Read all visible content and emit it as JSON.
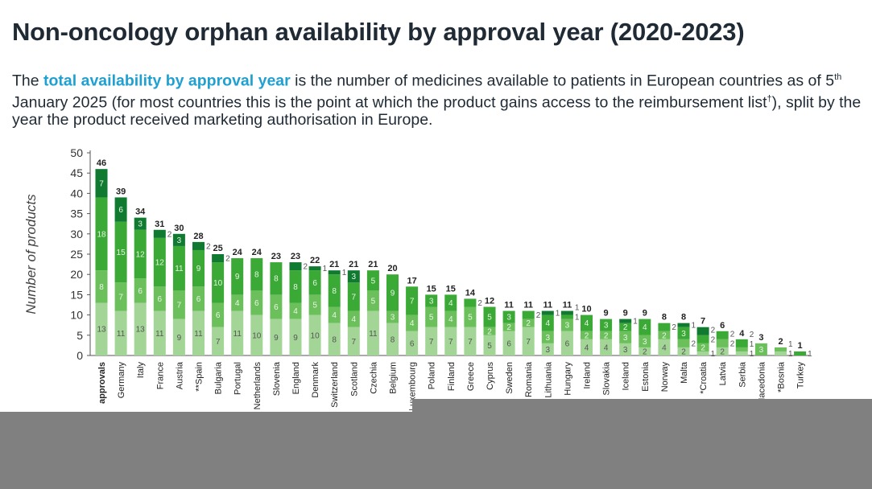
{
  "title": "Non-oncology orphan availability by approval year (2020-2023)",
  "subtitle": {
    "pre": "The ",
    "highlight": "total availability by approval year",
    "mid": " is the number of medicines available to patients in European countries as of 5",
    "sup": "th",
    "post": " January 2025 (for most countries this is the point at which the product gains access to the reimbursement list",
    "dagger": "†",
    "end": "), split by the year the product received marketing authorisation in Europe."
  },
  "colors": {
    "highlight": "#1fa0d0",
    "segments": [
      "#a3d597",
      "#6cc05c",
      "#3aa935",
      "#0f7a30"
    ]
  },
  "chart_data": {
    "type": "bar",
    "stacked": true,
    "ylabel": "Number of products",
    "ylim": [
      0,
      50
    ],
    "yticks": [
      0,
      5,
      10,
      15,
      20,
      25,
      30,
      35,
      40,
      45,
      50
    ],
    "grid": false,
    "categories": [
      "approvals",
      "Germany",
      "Italy",
      "France",
      "Austria",
      "**Spain",
      "Bulgaria",
      "Portugal",
      "Netherlands",
      "Slovenia",
      "England",
      "Denmark",
      "Switzerland",
      "Scotland",
      "Czechia",
      "Belgium",
      "Luxembourg",
      "Poland",
      "Finland",
      "Greece",
      "Cyprus",
      "Sweden",
      "Romania",
      "Lithuania",
      "Hungary",
      "Ireland",
      "Slovakia",
      "Iceland",
      "Estonia",
      "Norway",
      "Malta",
      "*Croatia",
      "Latvia",
      "Serbia",
      "Macedonia",
      "*Bosnia",
      "Turkey"
    ],
    "totals": [
      46,
      39,
      34,
      31,
      30,
      28,
      25,
      24,
      24,
      23,
      23,
      22,
      21,
      21,
      21,
      20,
      17,
      15,
      15,
      14,
      12,
      11,
      11,
      11,
      11,
      10,
      9,
      9,
      9,
      8,
      8,
      7,
      6,
      4,
      3,
      2,
      1
    ],
    "series": [
      {
        "values": [
          13,
          11,
          13,
          11,
          9,
          11,
          7,
          11,
          10,
          9,
          9,
          10,
          8,
          7,
          11,
          8,
          6,
          7,
          7,
          7,
          5,
          6,
          7,
          3,
          6,
          4,
          4,
          3,
          2,
          4,
          2,
          1,
          2,
          1,
          0,
          1,
          0
        ]
      },
      {
        "values": [
          8,
          7,
          6,
          6,
          7,
          6,
          6,
          4,
          6,
          6,
          4,
          5,
          4,
          4,
          5,
          3,
          4,
          5,
          4,
          5,
          2,
          2,
          2,
          3,
          3,
          2,
          2,
          3,
          3,
          2,
          2,
          2,
          2,
          1,
          3,
          1,
          0
        ]
      },
      {
        "values": [
          18,
          15,
          12,
          12,
          11,
          9,
          10,
          9,
          8,
          8,
          8,
          6,
          8,
          7,
          5,
          9,
          7,
          3,
          4,
          2,
          5,
          3,
          2,
          4,
          1,
          4,
          3,
          2,
          4,
          2,
          3,
          2,
          2,
          2,
          0,
          0,
          1
        ]
      },
      {
        "values": [
          7,
          6,
          3,
          2,
          3,
          2,
          2,
          0,
          0,
          0,
          2,
          1,
          1,
          3,
          0,
          0,
          0,
          0,
          0,
          0,
          0,
          0,
          0,
          1,
          1,
          0,
          0,
          1,
          0,
          0,
          1,
          2,
          0,
          0,
          0,
          0,
          0
        ]
      }
    ]
  }
}
